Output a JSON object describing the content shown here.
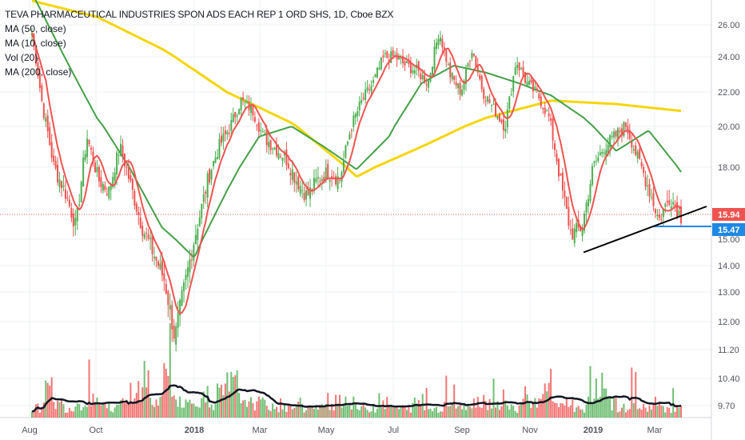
{
  "legend": {
    "title": "TEVA PHARMACEUTICAL INDUSTRIES SPON ADS EACH REP 1 ORD SHS, 1D, Cboe BZX",
    "ma50": "MA (50, close)",
    "ma10": "MA (10, close)",
    "vol": "Vol (20)",
    "ma200": "MA (200, close)"
  },
  "colors": {
    "up": "#4caf50",
    "down": "#ef5350",
    "ma10": "#ef5350",
    "ma50": "#43a047",
    "ma200": "#f5d50a",
    "vol_ma": "#131722",
    "price_tag": "#ef5350",
    "support_tag": "#1e88e5",
    "grid": "#eef0f3"
  },
  "chart_data": {
    "type": "candlestick",
    "yticks": [
      9.7,
      10.4,
      11.2,
      12.0,
      13.0,
      14.0,
      15.0,
      15.47,
      15.94,
      18.0,
      20.0,
      22.0,
      24.0,
      26.0
    ],
    "ytick_labels": [
      "9.70",
      "10.40",
      "11.20",
      "12.00",
      "13.00",
      "14.00",
      "15.00",
      "15.47",
      "15.94",
      "18.00",
      "20.00",
      "22.00",
      "24.00",
      "26.00"
    ],
    "xtick_labels": [
      "Aug",
      "Oct",
      "2018",
      "Mar",
      "May",
      "Jul",
      "Sep",
      "Nov",
      "2019",
      "Mar"
    ],
    "last_price": 15.94,
    "last_price_label": "15.94",
    "support_level": 15.47,
    "support_label": "15.47",
    "trendline": {
      "from": {
        "date": "Dec 2018",
        "value": 14.5
      },
      "to": {
        "date": "Mar 2019",
        "value": 16.2
      }
    },
    "price_anchors": [
      [
        "Jul 2017",
        25.5
      ],
      [
        "Jul 2017",
        21.0
      ],
      [
        "Aug 2017",
        18.0
      ],
      [
        "Aug 2017",
        17.0
      ],
      [
        "Aug 2017",
        15.5
      ],
      [
        "Sep 2017",
        19.5
      ],
      [
        "Sep 2017",
        17.5
      ],
      [
        "Sep 2017",
        17.0
      ],
      [
        "Oct 2017",
        19.0
      ],
      [
        "Oct 2017",
        17.2
      ],
      [
        "Oct 2017",
        15.5
      ],
      [
        "Oct 2017",
        14.5
      ],
      [
        "Nov 2017",
        13.5
      ],
      [
        "Nov 2017",
        11.5
      ],
      [
        "Nov 2017",
        13.5
      ],
      [
        "Dec 2017",
        15.5
      ],
      [
        "Dec 2017",
        17.5
      ],
      [
        "Dec 2017",
        19.0
      ],
      [
        "Jan 2018",
        20.0
      ],
      [
        "Jan 2018",
        21.5
      ],
      [
        "Feb 2018",
        21.0
      ],
      [
        "Feb 2018",
        19.5
      ],
      [
        "Feb 2018",
        19.0
      ],
      [
        "Mar 2018",
        18.5
      ],
      [
        "Mar 2018",
        17.5
      ],
      [
        "Apr 2018",
        16.8
      ],
      [
        "Apr 2018",
        17.5
      ],
      [
        "May 2018",
        17.8
      ],
      [
        "May 2018",
        17.5
      ],
      [
        "May 2018",
        20.0
      ],
      [
        "Jun 2018",
        21.5
      ],
      [
        "Jun 2018",
        22.5
      ],
      [
        "Jun 2018",
        24.0
      ],
      [
        "Jul 2018",
        24.0
      ],
      [
        "Jul 2018",
        23.5
      ],
      [
        "Aug 2018",
        23.2
      ],
      [
        "Aug 2018",
        22.5
      ],
      [
        "Aug 2018",
        25.6
      ],
      [
        "Sep 2018",
        23.0
      ],
      [
        "Sep 2018",
        22.0
      ],
      [
        "Sep 2018",
        24.5
      ],
      [
        "Oct 2018",
        22.0
      ],
      [
        "Oct 2018",
        21.0
      ],
      [
        "Oct 2018",
        20.0
      ],
      [
        "Nov 2018",
        23.8
      ],
      [
        "Nov 2018",
        22.5
      ],
      [
        "Nov 2018",
        21.8
      ],
      [
        "Dec 2018",
        20.5
      ],
      [
        "Dec 2018",
        17.5
      ],
      [
        "Dec 2018",
        15.2
      ],
      [
        "Jan 2019",
        15.5
      ],
      [
        "Jan 2019",
        18.0
      ],
      [
        "Jan 2019",
        19.0
      ],
      [
        "Feb 2019",
        19.5
      ],
      [
        "Feb 2019",
        20.1
      ],
      [
        "Feb 2019",
        18.5
      ],
      [
        "Mar 2019",
        17.2
      ],
      [
        "Mar 2019",
        15.8
      ],
      [
        "Mar 2019",
        16.8
      ],
      [
        "Mar 2019",
        15.94
      ]
    ],
    "ma200_anchors": [
      [
        "Jul 2017",
        27.5
      ],
      [
        "Sep 2017",
        26.5
      ],
      [
        "Nov 2017",
        24.5
      ],
      [
        "Jan 2018",
        22.0
      ],
      [
        "Mar 2018",
        20.2
      ],
      [
        "May 2018",
        17.6
      ],
      [
        "Jul 2018",
        19.0
      ],
      [
        "Sep 2018",
        20.5
      ],
      [
        "Nov 2018",
        21.5
      ],
      [
        "Jan 2019",
        21.3
      ],
      [
        "Mar 2019",
        20.9
      ]
    ],
    "ma50_anchors": [
      [
        "Jul 2017",
        28.0
      ],
      [
        "Aug 2017",
        24.0
      ],
      [
        "Sep 2017",
        20.5
      ],
      [
        "Oct 2017",
        18.0
      ],
      [
        "Nov 2017",
        15.5
      ],
      [
        "Dec 2017",
        14.3
      ],
      [
        "Jan 2018",
        17.0
      ],
      [
        "Feb 2018",
        19.5
      ],
      [
        "Mar 2018",
        20.0
      ],
      [
        "Apr 2018",
        19.0
      ],
      [
        "May 2018",
        17.9
      ],
      [
        "Jun 2018",
        19.5
      ],
      [
        "Jul 2018",
        22.5
      ],
      [
        "Aug 2018",
        23.5
      ],
      [
        "Sep 2018",
        23.1
      ],
      [
        "Oct 2018",
        22.5
      ],
      [
        "Nov 2018",
        21.8
      ],
      [
        "Dec 2018",
        20.5
      ],
      [
        "Jan 2019",
        18.8
      ],
      [
        "Feb 2019",
        19.8
      ],
      [
        "Mar 2019",
        17.8
      ]
    ],
    "volume_pattern": [
      2,
      6,
      3,
      2,
      3,
      4,
      3,
      2,
      3,
      6,
      5,
      3,
      8,
      4,
      3,
      4,
      3,
      5,
      7,
      4,
      3,
      3,
      2,
      2,
      3,
      2,
      2,
      3,
      4,
      3,
      2,
      2,
      3,
      2,
      2,
      3,
      2,
      2,
      3,
      2,
      3,
      4,
      3,
      3,
      2,
      5,
      3,
      7,
      3,
      3,
      2,
      3,
      6,
      3,
      2,
      3,
      2,
      3,
      2,
      2
    ]
  }
}
